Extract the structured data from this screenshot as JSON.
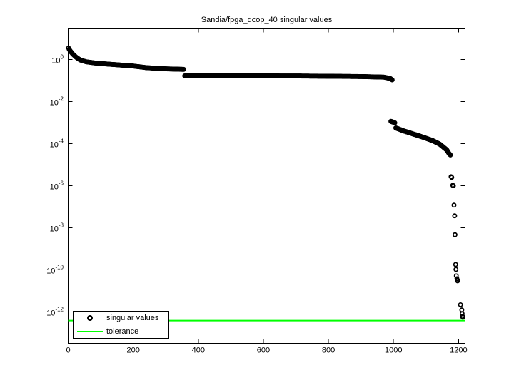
{
  "window": {
    "background": "#ffffff"
  },
  "colors": {
    "axis": "#000000",
    "marker": "#000000",
    "tolerance_line": "#00ff00",
    "text": "#000000",
    "plot_background": "#ffffff"
  },
  "legend": {
    "items": [
      {
        "label": "singular values",
        "marker": "circle",
        "color": "#000000"
      },
      {
        "label": "tolerance",
        "marker": "line",
        "color": "#00ff00"
      }
    ],
    "position": "southwest"
  },
  "chart_data": {
    "type": "scatter",
    "title": "Sandia/fpga_dcop_40 singular values",
    "xlabel": "",
    "ylabel": "",
    "grid": false,
    "x_scale": "linear",
    "y_scale": "log",
    "xlim": [
      0,
      1220
    ],
    "ylim": [
      3e-14,
      30.0
    ],
    "x_ticks": [
      0,
      200,
      400,
      600,
      800,
      1000,
      1200
    ],
    "y_tick_exponents": [
      0,
      -2,
      -4,
      -6,
      -8,
      -10,
      -12
    ],
    "legend_position": "southwest",
    "tolerance_value": 3.9e-13,
    "series": [
      {
        "name": "singular values",
        "marker": "o",
        "color": "#000000",
        "segments": [
          {
            "note": "leading cluster, indices 1-356, values ~3.5 down to ~0.34",
            "step": 2,
            "anchors": [
              [
                1,
                3.5
              ],
              [
                3,
                3.0
              ],
              [
                6,
                2.6
              ],
              [
                13,
                1.9
              ],
              [
                24,
                1.3
              ],
              [
                37,
                0.95
              ],
              [
                55,
                0.78
              ],
              [
                90,
                0.66
              ],
              [
                145,
                0.57
              ],
              [
                200,
                0.49
              ],
              [
                240,
                0.41
              ],
              [
                300,
                0.36
              ],
              [
                356,
                0.34
              ]
            ]
          },
          {
            "note": "long flat plateau, indices 358-997, values ~0.168 to ~0.105",
            "step": 2,
            "anchors": [
              [
                358,
                0.168
              ],
              [
                700,
                0.165
              ],
              [
                900,
                0.155
              ],
              [
                970,
                0.145
              ],
              [
                990,
                0.125
              ],
              [
                997,
                0.105
              ]
            ]
          },
          {
            "note": "small blob after cliff, indices 992-1004, ~1e-3",
            "step": 1,
            "anchors": [
              [
                992,
                0.00115
              ],
              [
                1004,
                0.00098
              ]
            ]
          },
          {
            "note": "descending tail band, indices 1007-1175, 5.6e-4 down to 2.9e-5",
            "step": 1,
            "anchors": [
              [
                1007,
                0.00056
              ],
              [
                1030,
                0.00041
              ],
              [
                1060,
                0.00029
              ],
              [
                1090,
                0.000205
              ],
              [
                1120,
                0.00014
              ],
              [
                1142,
                9.5e-05
              ],
              [
                1155,
                6.5e-05
              ],
              [
                1164,
                5e-05
              ],
              [
                1171,
                3.3e-05
              ],
              [
                1175,
                2.9e-05
              ]
            ]
          }
        ],
        "points": [
          [
            1177,
            2.7e-06
          ],
          [
            1179,
            2.5e-06
          ],
          [
            1182,
            1.05e-06
          ],
          [
            1184,
            1e-06
          ],
          [
            1186,
            1.2e-07
          ],
          [
            1188,
            3.7e-08
          ],
          [
            1189,
            4.7e-09
          ],
          [
            1191,
            1.8e-10
          ],
          [
            1192,
            1.05e-10
          ],
          [
            1193,
            5.2e-11
          ],
          [
            1195,
            3.8e-11
          ],
          [
            1196,
            3.3e-11
          ],
          [
            1197,
            3e-11
          ],
          [
            1206,
            2.2e-12
          ],
          [
            1210,
            1.25e-12
          ],
          [
            1211,
            8.2e-13
          ],
          [
            1212,
            6.2e-13
          ],
          [
            1213,
            5.6e-13
          ]
        ]
      },
      {
        "name": "tolerance",
        "type": "hline",
        "color": "#00ff00",
        "value": 3.9e-13
      }
    ]
  }
}
